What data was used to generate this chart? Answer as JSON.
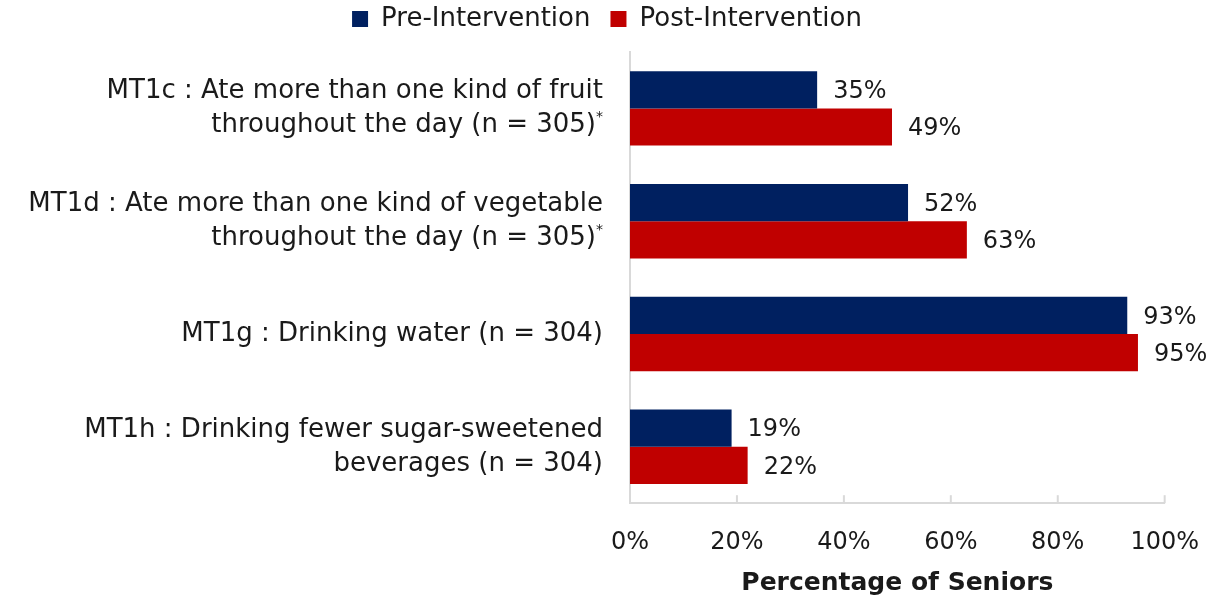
{
  "chart_data": {
    "type": "bar",
    "orientation": "horizontal",
    "categories": [
      "MT1c : Ate more than one kind of fruit throughout the day (n = 305)$^{*}$",
      "MT1d : Ate more than one kind of vegetable throughout the day (n = 305)$^{*}$",
      "MT1g : Drinking water (n = 304)",
      "MT1h : Drinking fewer sugar-sweetened beverages (n = 304)"
    ],
    "series": [
      {
        "name": "Pre-Intervention",
        "color": "#002060",
        "values": [
          35,
          52,
          93,
          19
        ],
        "value_labels": [
          "35%",
          "52%",
          "93%",
          "19%"
        ]
      },
      {
        "name": "Post-Intervention",
        "color": "#c00000",
        "values": [
          49,
          63,
          95,
          22
        ],
        "value_labels": [
          "49%",
          "63%",
          "95%",
          "22%"
        ]
      }
    ],
    "xlabel": "Percentage of Seniors",
    "xlim": [
      0,
      100
    ],
    "xticks": [
      {
        "value": 0,
        "label": "0%"
      },
      {
        "value": 20,
        "label": "20%"
      },
      {
        "value": 40,
        "label": "40%"
      },
      {
        "value": 60,
        "label": "60%"
      },
      {
        "value": 80,
        "label": "80%"
      },
      {
        "value": 100,
        "label": "100%"
      }
    ],
    "legend": "top"
  }
}
